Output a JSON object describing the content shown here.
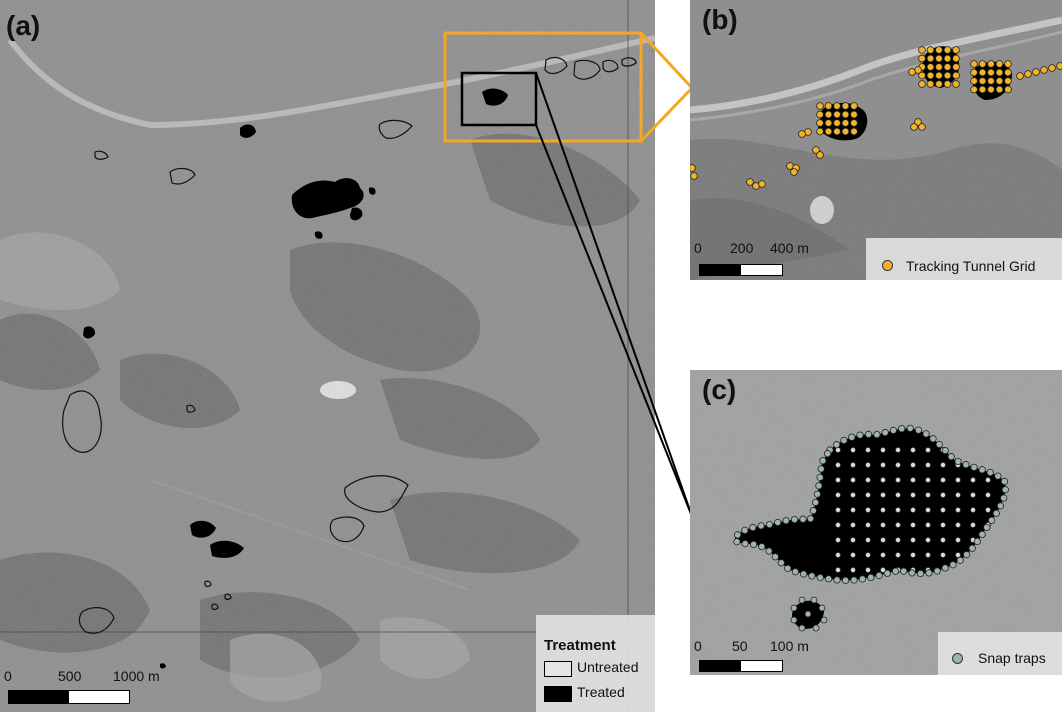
{
  "panel_a": {
    "label": "(a)",
    "scale_ticks": [
      "0",
      "500",
      "1000 m"
    ],
    "legend": {
      "title": "Treatment",
      "items": [
        {
          "label": "Untreated",
          "fill": "#e6e6e6"
        },
        {
          "label": "Treated",
          "fill": "#000000"
        }
      ]
    },
    "inset_frame_color": "#f5a623"
  },
  "panel_b": {
    "label": "(b)",
    "scale_ticks": [
      "0",
      "200",
      "400 m"
    ],
    "legend_label": "Tracking Tunnel Grid",
    "marker_color": "#f0b429"
  },
  "panel_c": {
    "label": "(c)",
    "scale_ticks": [
      "0",
      "50",
      "100 m"
    ],
    "legend_label": "Snap traps",
    "marker_color": "#9fb3ae"
  }
}
